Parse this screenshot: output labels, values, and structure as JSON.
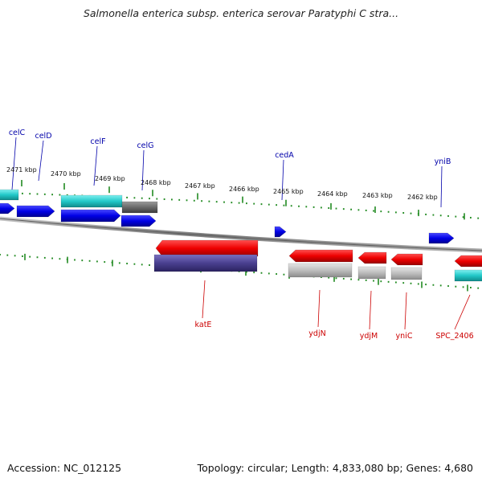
{
  "title": "Salmonella enterica subsp. enterica serovar Paratyphi C stra...",
  "footer": {
    "accession": "Accession: NC_012125",
    "summary": "Topology: circular; Length: 4,833,080 bp; Genes: 4,680"
  },
  "ticks": [
    {
      "label": "2471 kbp"
    },
    {
      "label": "2470 kbp"
    },
    {
      "label": "2469 kbp"
    },
    {
      "label": "2468 kbp"
    },
    {
      "label": "2467 kbp"
    },
    {
      "label": "2466 kbp"
    },
    {
      "label": "2465 kbp"
    },
    {
      "label": "2464 kbp"
    },
    {
      "label": "2463 kbp"
    },
    {
      "label": "2462 kbp"
    }
  ],
  "genes_forward": [
    {
      "name": "celC"
    },
    {
      "name": "celD"
    },
    {
      "name": "celF"
    },
    {
      "name": "celG"
    },
    {
      "name": "cedA"
    },
    {
      "name": "yniB"
    }
  ],
  "genes_reverse": [
    {
      "name": "katE"
    },
    {
      "name": "ydjN"
    },
    {
      "name": "ydjM"
    },
    {
      "name": "yniC"
    },
    {
      "name": "SPC_2406"
    }
  ],
  "colors": {
    "forward_gene": "#0000ee",
    "reverse_gene": "#ee0000",
    "cds_cyan": "#22c8c8",
    "cds_gray": "#6a6a6a",
    "cds_light": "#bdbdbd",
    "cds_purple": "#4a4090",
    "tick": "#228b22",
    "backbone": "#888888",
    "forward_label": "#0000aa",
    "reverse_label": "#cc0000"
  }
}
